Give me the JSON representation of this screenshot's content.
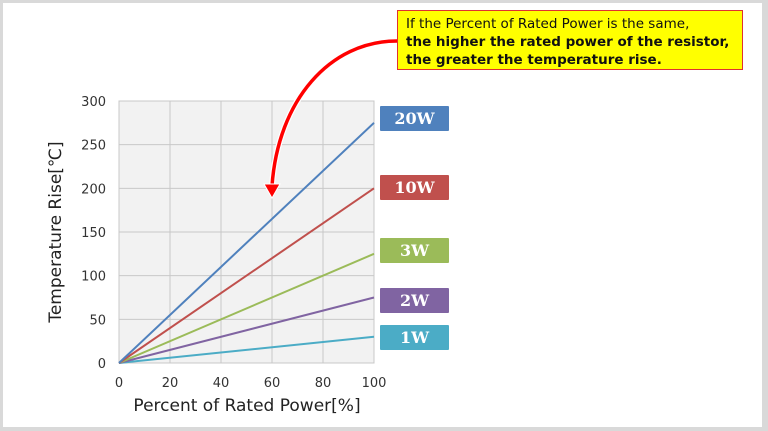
{
  "callout": {
    "line1": "If the Percent of Rated Power is the same,",
    "line2": "the higher the rated power of the resistor,",
    "line3": "the greater the temperature rise."
  },
  "chart_data": {
    "type": "line",
    "title": "",
    "xlabel": "Percent of Rated Power[%]",
    "ylabel": "Temperature Rise[℃]",
    "xlim": [
      0,
      100
    ],
    "ylim": [
      0,
      300
    ],
    "xticks": [
      "0",
      "20",
      "40",
      "60",
      "80",
      "100"
    ],
    "yticks": [
      "0",
      "50",
      "100",
      "150",
      "200",
      "250",
      "300"
    ],
    "grid": true,
    "legend_position": "right",
    "x": [
      0,
      100
    ],
    "series": [
      {
        "name": "20W",
        "values": [
          0,
          275
        ],
        "color": "#4f81bd"
      },
      {
        "name": "10W",
        "values": [
          0,
          200
        ],
        "color": "#c0504d"
      },
      {
        "name": "3W",
        "values": [
          0,
          125
        ],
        "color": "#9bbb59"
      },
      {
        "name": "2W",
        "values": [
          0,
          75
        ],
        "color": "#8064a2"
      },
      {
        "name": "1W",
        "values": [
          0,
          30
        ],
        "color": "#4bacc6"
      }
    ],
    "annotations": [
      "Red curved arrow from callout pointing to 20W line near x=60"
    ]
  },
  "legend": [
    {
      "label": "20W",
      "color": "#4f81bd"
    },
    {
      "label": "10W",
      "color": "#c0504d"
    },
    {
      "label": "3W",
      "color": "#9bbb59"
    },
    {
      "label": "2W",
      "color": "#8064a2"
    },
    {
      "label": "1W",
      "color": "#4bacc6"
    }
  ]
}
